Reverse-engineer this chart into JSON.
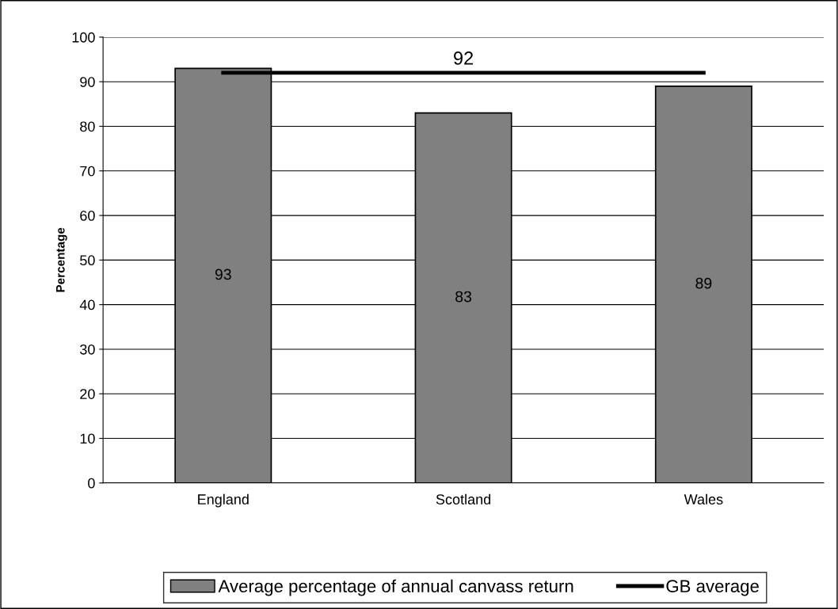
{
  "chart_data": {
    "type": "bar",
    "ylabel": "Percentage",
    "categories": [
      "England",
      "Scotland",
      "Wales"
    ],
    "series": [
      {
        "name": "Average percentage of annual canvass return",
        "color": "#808080",
        "values": [
          93,
          83,
          89
        ],
        "value_labels": [
          "93",
          "83",
          "89"
        ]
      },
      {
        "name": "GB average",
        "type": "line",
        "color": "#000000",
        "values": [
          92,
          92,
          92
        ],
        "value_labels": [
          null,
          "92",
          null
        ]
      }
    ],
    "ylim": [
      0,
      100
    ],
    "yticks": [
      0,
      10,
      20,
      30,
      40,
      50,
      60,
      70,
      80,
      90,
      100
    ],
    "grid": "y",
    "legend": "bottom",
    "marker": "none",
    "line_style": "solid"
  }
}
